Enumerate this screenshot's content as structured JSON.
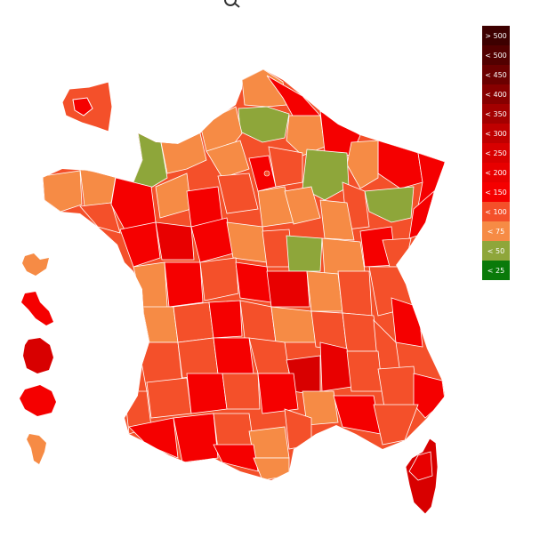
{
  "legend": {
    "items": [
      {
        "label": "> 500",
        "color": "#3d0000"
      },
      {
        "label": "< 500",
        "color": "#520000"
      },
      {
        "label": "< 450",
        "color": "#6b0000"
      },
      {
        "label": "< 400",
        "color": "#870000"
      },
      {
        "label": "< 350",
        "color": "#a30000"
      },
      {
        "label": "< 300",
        "color": "#bf0000"
      },
      {
        "label": "< 250",
        "color": "#d80000"
      },
      {
        "label": "< 200",
        "color": "#e80000"
      },
      {
        "label": "< 150",
        "color": "#f50000"
      },
      {
        "label": "< 100",
        "color": "#f4502a"
      },
      {
        "label": "< 75",
        "color": "#f68b45"
      },
      {
        "label": "< 50",
        "color": "#8ea63a"
      },
      {
        "label": "< 25",
        "color": "#0a7a0a"
      }
    ]
  },
  "icons": {
    "zoom": "zoom-icon"
  }
}
